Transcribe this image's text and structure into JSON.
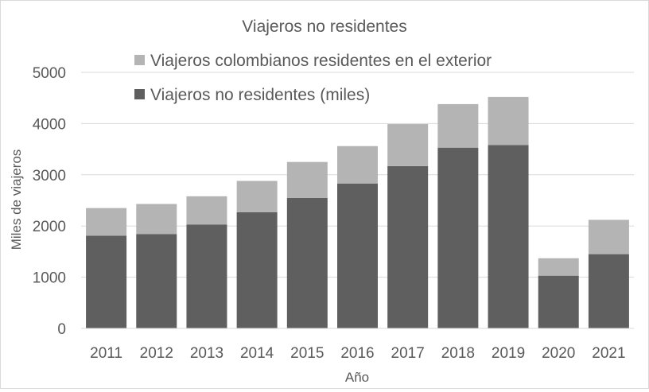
{
  "chart_data": {
    "type": "bar",
    "stacked": true,
    "title": "Viajeros no residentes",
    "xlabel": "Año",
    "ylabel": "Miles de viajeros",
    "ylim": [
      0,
      5000
    ],
    "yticks": [
      0,
      1000,
      2000,
      3000,
      4000,
      5000
    ],
    "grid": true,
    "legend_position": "top-center",
    "categories": [
      "2011",
      "2012",
      "2013",
      "2014",
      "2015",
      "2016",
      "2017",
      "2018",
      "2019",
      "2020",
      "2021"
    ],
    "series": [
      {
        "name": "Viajeros no residentes (miles)",
        "color": "#5f5f5f",
        "values": [
          1810,
          1840,
          2030,
          2270,
          2550,
          2830,
          3170,
          3530,
          3580,
          1030,
          1450
        ]
      },
      {
        "name": "Viajeros colombianos residentes en el exterior",
        "color": "#b4b4b4",
        "values": [
          540,
          590,
          550,
          610,
          700,
          730,
          820,
          850,
          940,
          340,
          670
        ]
      }
    ],
    "legend_order": [
      1,
      0
    ]
  }
}
